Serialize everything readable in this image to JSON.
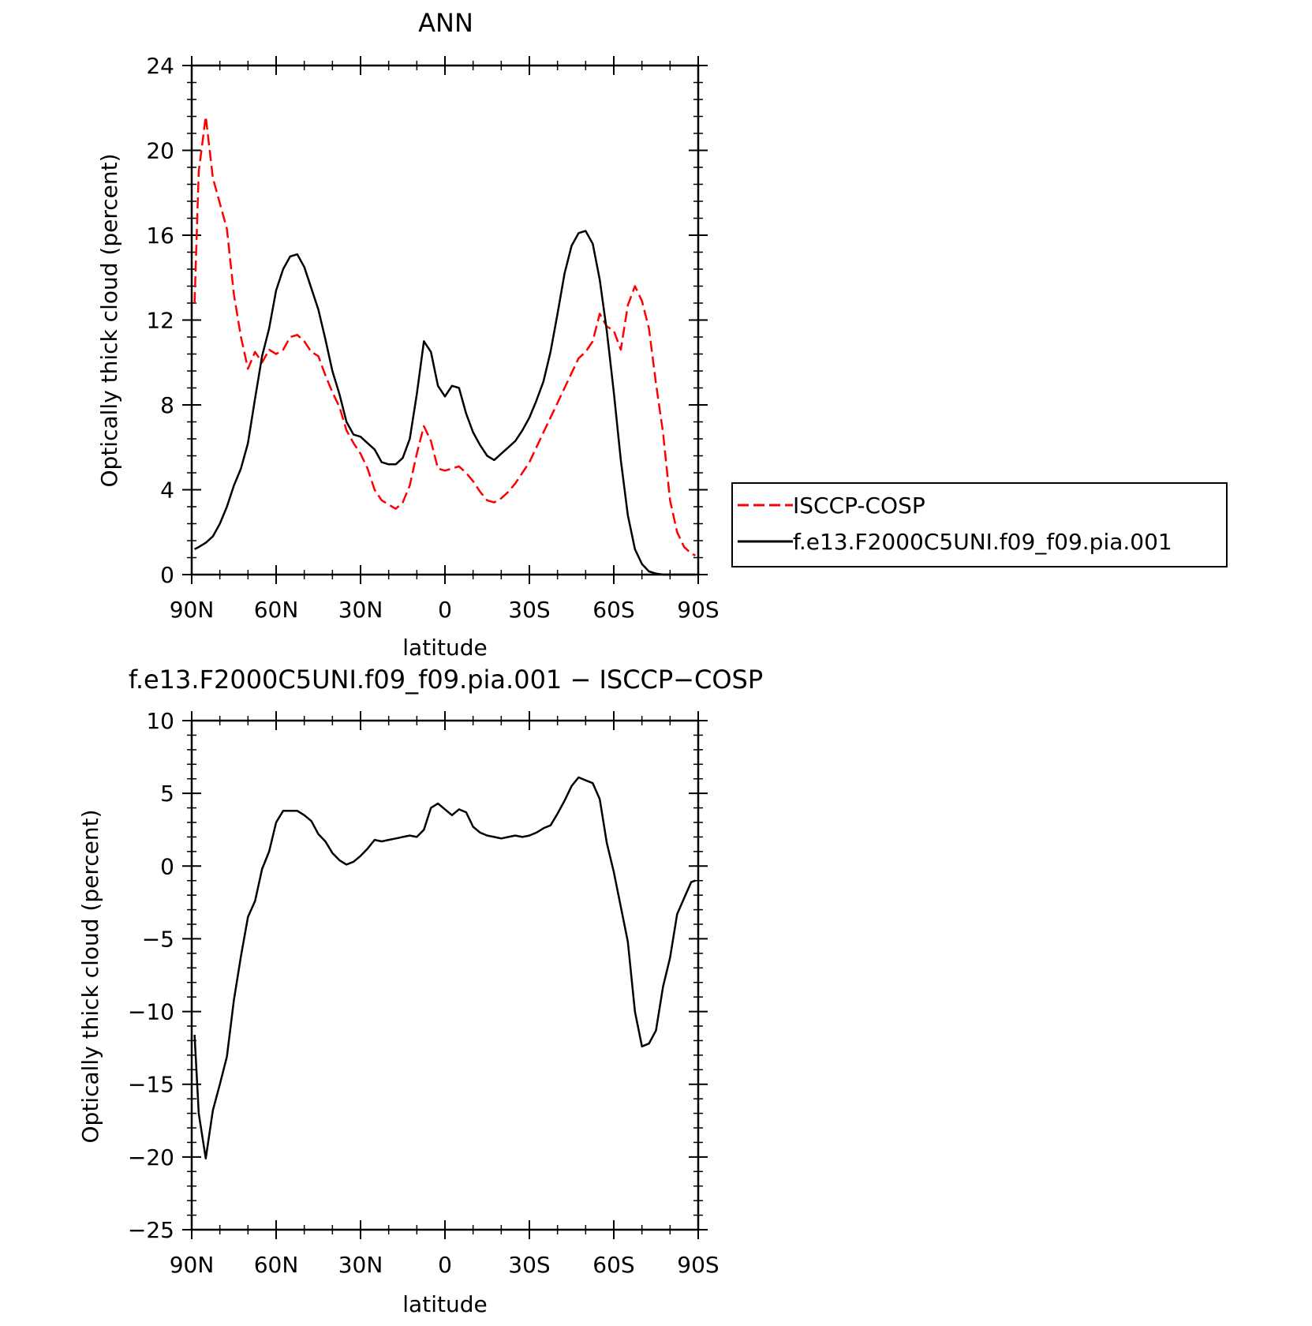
{
  "chart_data": [
    {
      "type": "line",
      "title": "ANN",
      "xlabel": "latitude",
      "ylabel": "Optically thick cloud (percent)",
      "xlim": [
        90,
        -90
      ],
      "ylim": [
        0,
        24
      ],
      "xticks": [
        {
          "value": 90,
          "label": "90N"
        },
        {
          "value": 60,
          "label": "60N"
        },
        {
          "value": 30,
          "label": "30N"
        },
        {
          "value": 0,
          "label": "0"
        },
        {
          "value": -30,
          "label": "30S"
        },
        {
          "value": -60,
          "label": "60S"
        },
        {
          "value": -90,
          "label": "90S"
        }
      ],
      "yticks": [
        {
          "value": 0,
          "label": "0"
        },
        {
          "value": 4,
          "label": "4"
        },
        {
          "value": 8,
          "label": "8"
        },
        {
          "value": 12,
          "label": "12"
        },
        {
          "value": 16,
          "label": "16"
        },
        {
          "value": 20,
          "label": "20"
        },
        {
          "value": 24,
          "label": "24"
        }
      ],
      "legend_position": "right",
      "grid": false,
      "series": [
        {
          "name": "ISCCP-COSP",
          "color": "#ff0000",
          "dash": "dashed",
          "x": [
            89,
            87.5,
            85,
            82.5,
            80,
            77.5,
            75,
            72.5,
            70,
            67.5,
            65,
            62.5,
            60,
            57.5,
            55,
            52.5,
            50,
            47.5,
            45,
            42.5,
            40,
            37.5,
            35,
            32.5,
            30,
            27.5,
            25,
            22.5,
            20,
            17.5,
            15,
            12.5,
            10,
            7.5,
            5,
            2.5,
            0,
            -2.5,
            -5,
            -7.5,
            -10,
            -12.5,
            -15,
            -17.5,
            -20,
            -22.5,
            -25,
            -27.5,
            -30,
            -32.5,
            -35,
            -37.5,
            -40,
            -42.5,
            -45,
            -47.5,
            -50,
            -52.5,
            -55,
            -57.5,
            -60,
            -62.5,
            -65,
            -67.5,
            -70,
            -72.5,
            -75,
            -77.5,
            -80,
            -82.5,
            -85,
            -87.5,
            -89
          ],
          "values": [
            12.8,
            19.0,
            21.6,
            18.7,
            17.5,
            16.3,
            13.2,
            11.2,
            9.7,
            10.5,
            10.0,
            10.6,
            10.4,
            10.6,
            11.2,
            11.3,
            11.0,
            10.5,
            10.3,
            9.4,
            8.6,
            7.9,
            6.8,
            6.2,
            5.7,
            5.0,
            4.0,
            3.5,
            3.3,
            3.1,
            3.4,
            4.2,
            5.7,
            7.0,
            6.3,
            5.0,
            4.9,
            5.0,
            5.1,
            4.8,
            4.4,
            3.9,
            3.5,
            3.4,
            3.6,
            3.9,
            4.3,
            4.8,
            5.3,
            6.0,
            6.7,
            7.4,
            8.1,
            8.8,
            9.5,
            10.2,
            10.5,
            11.0,
            12.3,
            11.7,
            11.5,
            10.6,
            12.7,
            13.6,
            12.9,
            11.6,
            9.0,
            6.7,
            3.5,
            2.0,
            1.3,
            1.0,
            0.9
          ]
        },
        {
          "name": "f.e13.F2000C5UNI.f09_f09.pia.001",
          "color": "#000000",
          "dash": "solid",
          "x": [
            89,
            87.5,
            85,
            82.5,
            80,
            77.5,
            75,
            72.5,
            70,
            67.5,
            65,
            62.5,
            60,
            57.5,
            55,
            52.5,
            50,
            47.5,
            45,
            42.5,
            40,
            37.5,
            35,
            32.5,
            30,
            27.5,
            25,
            22.5,
            20,
            17.5,
            15,
            12.5,
            10,
            7.5,
            5,
            2.5,
            0,
            -2.5,
            -5,
            -7.5,
            -10,
            -12.5,
            -15,
            -17.5,
            -20,
            -22.5,
            -25,
            -27.5,
            -30,
            -32.5,
            -35,
            -37.5,
            -40,
            -42.5,
            -45,
            -47.5,
            -50,
            -52.5,
            -55,
            -57.5,
            -60,
            -62.5,
            -65,
            -67.5,
            -70,
            -72.5,
            -75,
            -77.5,
            -80,
            -82.5,
            -85,
            -87.5,
            -89
          ],
          "values": [
            1.2,
            1.3,
            1.5,
            1.8,
            2.4,
            3.2,
            4.2,
            5.0,
            6.2,
            8.3,
            10.3,
            11.6,
            13.4,
            14.4,
            15.0,
            15.1,
            14.5,
            13.5,
            12.5,
            11.1,
            9.6,
            8.5,
            7.2,
            6.6,
            6.5,
            6.2,
            5.9,
            5.3,
            5.2,
            5.2,
            5.5,
            6.4,
            8.5,
            11.0,
            10.5,
            8.9,
            8.4,
            8.9,
            8.8,
            7.6,
            6.7,
            6.1,
            5.6,
            5.4,
            5.7,
            6.0,
            6.3,
            6.8,
            7.4,
            8.2,
            9.1,
            10.5,
            12.3,
            14.2,
            15.5,
            16.1,
            16.2,
            15.6,
            13.9,
            11.5,
            8.6,
            5.4,
            2.8,
            1.2,
            0.5,
            0.15,
            0.05,
            0.0,
            0.0,
            0.0,
            0.0,
            0.0,
            0.0
          ]
        }
      ]
    },
    {
      "type": "line",
      "title": "f.e13.F2000C5UNI.f09_f09.pia.001 − ISCCP−COSP",
      "xlabel": "latitude",
      "ylabel": "Optically thick cloud (percent)",
      "xlim": [
        90,
        -90
      ],
      "ylim": [
        -25,
        10
      ],
      "xticks": [
        {
          "value": 90,
          "label": "90N"
        },
        {
          "value": 60,
          "label": "60N"
        },
        {
          "value": 30,
          "label": "30N"
        },
        {
          "value": 0,
          "label": "0"
        },
        {
          "value": -30,
          "label": "30S"
        },
        {
          "value": -60,
          "label": "60S"
        },
        {
          "value": -90,
          "label": "90S"
        }
      ],
      "yticks": [
        {
          "value": 10,
          "label": "10"
        },
        {
          "value": 5,
          "label": "5"
        },
        {
          "value": 0,
          "label": "0"
        },
        {
          "value": -5,
          "label": "−5"
        },
        {
          "value": -10,
          "label": "−10"
        },
        {
          "value": -15,
          "label": "−15"
        },
        {
          "value": -20,
          "label": "−20"
        },
        {
          "value": -25,
          "label": "−25"
        }
      ],
      "grid": false,
      "series": [
        {
          "color": "#000000",
          "dash": "solid",
          "x": [
            89,
            87.5,
            85,
            82.5,
            80,
            77.5,
            75,
            72.5,
            70,
            67.5,
            65,
            62.5,
            60,
            57.5,
            55,
            52.5,
            50,
            47.5,
            45,
            42.5,
            40,
            37.5,
            35,
            32.5,
            30,
            27.5,
            25,
            22.5,
            20,
            17.5,
            15,
            12.5,
            10,
            7.5,
            5,
            2.5,
            0,
            -2.5,
            -5,
            -7.5,
            -10,
            -12.5,
            -15,
            -17.5,
            -20,
            -22.5,
            -25,
            -27.5,
            -30,
            -32.5,
            -35,
            -37.5,
            -40,
            -42.5,
            -45,
            -47.5,
            -50,
            -52.5,
            -55,
            -57.5,
            -60,
            -62.5,
            -65,
            -67.5,
            -70,
            -72.5,
            -75,
            -77.5,
            -80,
            -82.5,
            -85,
            -87.5,
            -89
          ],
          "values": [
            -11.6,
            -17.0,
            -20.1,
            -16.8,
            -15.0,
            -13.1,
            -9.2,
            -6.2,
            -3.5,
            -2.4,
            -0.2,
            1.0,
            3.0,
            3.8,
            3.8,
            3.8,
            3.5,
            3.1,
            2.2,
            1.7,
            0.9,
            0.4,
            0.1,
            0.3,
            0.7,
            1.2,
            1.8,
            1.7,
            1.8,
            1.9,
            2.0,
            2.1,
            2.0,
            2.5,
            4.0,
            4.3,
            3.9,
            3.5,
            3.9,
            3.7,
            2.7,
            2.3,
            2.1,
            2.0,
            1.9,
            2.0,
            2.1,
            2.0,
            2.1,
            2.3,
            2.6,
            2.8,
            3.6,
            4.5,
            5.5,
            6.1,
            5.9,
            5.7,
            4.6,
            1.6,
            -0.4,
            -2.8,
            -5.2,
            -10.0,
            -12.4,
            -12.2,
            -11.3,
            -8.3,
            -6.3,
            -3.3,
            -2.2,
            -1.1,
            -1.0
          ]
        }
      ]
    }
  ]
}
